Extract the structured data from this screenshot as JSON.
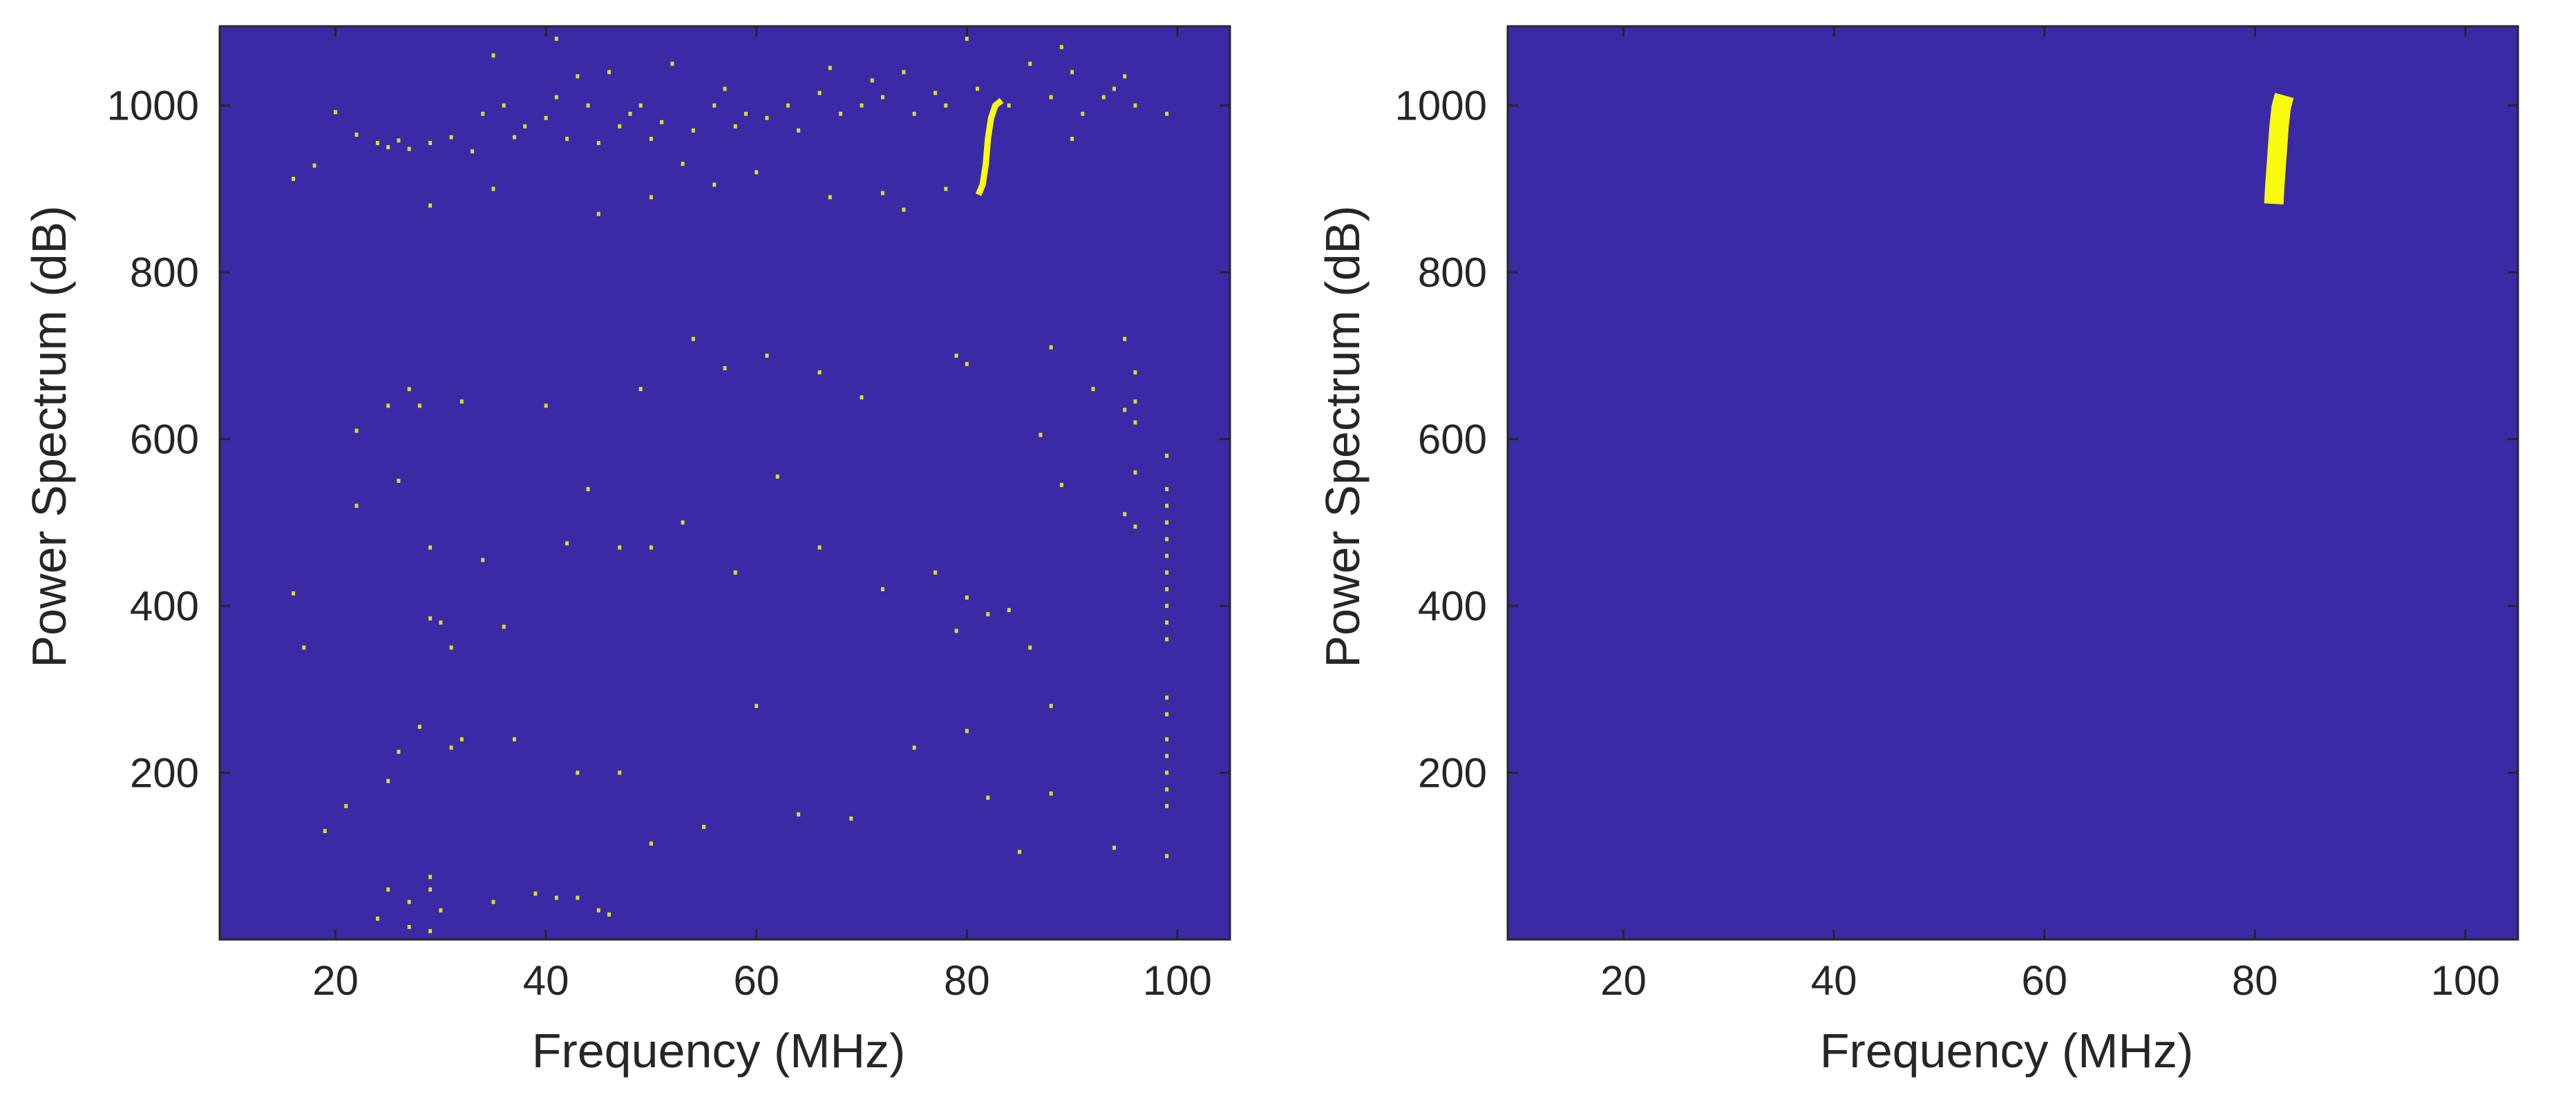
{
  "colors": {
    "background": "#3b2aa6",
    "signal": "#f9fb0e",
    "axis": "#262626"
  },
  "chart_data": [
    {
      "type": "heatmap",
      "title": "",
      "xlabel": "Frequency (MHz)",
      "ylabel": "Power Spectrum (dB)",
      "xlim": [
        9,
        105
      ],
      "ylim": [
        0,
        1095
      ],
      "xticks": [
        20,
        40,
        60,
        80,
        100
      ],
      "yticks": [
        200,
        400,
        600,
        800,
        1000
      ],
      "grid": false,
      "legend": "none",
      "colormap": [
        "#3b2aa6",
        "#f9fb0e"
      ],
      "description_of_values": "binary map; 1 = detected signal pixel",
      "signal_curve": {
        "points": [
          [
            81.1,
            893
          ],
          [
            81.5,
            905
          ],
          [
            81.8,
            930
          ],
          [
            82.0,
            960
          ],
          [
            82.3,
            985
          ],
          [
            82.7,
            1000
          ],
          [
            83.3,
            1006
          ]
        ]
      },
      "scatter_noise": {
        "points": [
          [
            16,
            912
          ],
          [
            18,
            928
          ],
          [
            20,
            992
          ],
          [
            22,
            965
          ],
          [
            24,
            955
          ],
          [
            25,
            950
          ],
          [
            26,
            958
          ],
          [
            27,
            948
          ],
          [
            29,
            955
          ],
          [
            31,
            962
          ],
          [
            33,
            945
          ],
          [
            34,
            990
          ],
          [
            35,
            1060
          ],
          [
            36,
            1000
          ],
          [
            37,
            962
          ],
          [
            38,
            975
          ],
          [
            40,
            985
          ],
          [
            41,
            1010
          ],
          [
            41,
            1080
          ],
          [
            42,
            960
          ],
          [
            43,
            1035
          ],
          [
            44,
            1000
          ],
          [
            45,
            955
          ],
          [
            46,
            1040
          ],
          [
            47,
            975
          ],
          [
            48,
            990
          ],
          [
            49,
            1000
          ],
          [
            50,
            960
          ],
          [
            51,
            980
          ],
          [
            52,
            1050
          ],
          [
            53,
            930
          ],
          [
            54,
            970
          ],
          [
            56,
            1000
          ],
          [
            57,
            1020
          ],
          [
            58,
            975
          ],
          [
            59,
            990
          ],
          [
            61,
            985
          ],
          [
            63,
            1000
          ],
          [
            64,
            970
          ],
          [
            66,
            1015
          ],
          [
            67,
            1045
          ],
          [
            68,
            990
          ],
          [
            70,
            1000
          ],
          [
            71,
            1030
          ],
          [
            72,
            1010
          ],
          [
            74,
            1040
          ],
          [
            75,
            990
          ],
          [
            77,
            1015
          ],
          [
            78,
            1000
          ],
          [
            80,
            1080
          ],
          [
            81,
            1020
          ],
          [
            84,
            1000
          ],
          [
            86,
            1050
          ],
          [
            88,
            1010
          ],
          [
            89,
            1070
          ],
          [
            90,
            960
          ],
          [
            90,
            1040
          ],
          [
            91,
            990
          ],
          [
            93,
            1010
          ],
          [
            94,
            1020
          ],
          [
            95,
            1035
          ],
          [
            96,
            1000
          ],
          [
            99,
            990
          ],
          [
            29,
            880
          ],
          [
            35,
            900
          ],
          [
            50,
            890
          ],
          [
            56,
            905
          ],
          [
            60,
            920
          ],
          [
            67,
            890
          ],
          [
            72,
            895
          ],
          [
            78,
            900
          ],
          [
            45,
            870
          ],
          [
            74,
            875
          ],
          [
            22,
            610
          ],
          [
            25,
            640
          ],
          [
            27,
            660
          ],
          [
            28,
            640
          ],
          [
            32,
            645
          ],
          [
            40,
            640
          ],
          [
            49,
            660
          ],
          [
            54,
            720
          ],
          [
            57,
            685
          ],
          [
            61,
            700
          ],
          [
            66,
            680
          ],
          [
            70,
            650
          ],
          [
            79,
            700
          ],
          [
            80,
            690
          ],
          [
            88,
            710
          ],
          [
            92,
            660
          ],
          [
            95,
            720
          ],
          [
            96,
            680
          ],
          [
            96,
            645
          ],
          [
            95,
            635
          ],
          [
            96,
            620
          ],
          [
            87,
            605
          ],
          [
            16,
            415
          ],
          [
            17,
            350
          ],
          [
            22,
            520
          ],
          [
            26,
            550
          ],
          [
            29,
            470
          ],
          [
            29,
            385
          ],
          [
            30,
            380
          ],
          [
            31,
            350
          ],
          [
            34,
            455
          ],
          [
            36,
            375
          ],
          [
            42,
            475
          ],
          [
            44,
            540
          ],
          [
            47,
            470
          ],
          [
            50,
            470
          ],
          [
            53,
            500
          ],
          [
            58,
            440
          ],
          [
            62,
            555
          ],
          [
            66,
            470
          ],
          [
            72,
            420
          ],
          [
            77,
            440
          ],
          [
            79,
            370
          ],
          [
            80,
            410
          ],
          [
            82,
            390
          ],
          [
            84,
            395
          ],
          [
            86,
            350
          ],
          [
            89,
            545
          ],
          [
            95,
            510
          ],
          [
            96,
            560
          ],
          [
            96,
            495
          ],
          [
            99,
            580
          ],
          [
            99,
            540
          ],
          [
            99,
            520
          ],
          [
            99,
            500
          ],
          [
            99,
            480
          ],
          [
            99,
            460
          ],
          [
            99,
            440
          ],
          [
            99,
            420
          ],
          [
            99,
            400
          ],
          [
            99,
            380
          ],
          [
            99,
            360
          ],
          [
            19,
            130
          ],
          [
            21,
            160
          ],
          [
            25,
            190
          ],
          [
            26,
            225
          ],
          [
            28,
            255
          ],
          [
            31,
            230
          ],
          [
            32,
            240
          ],
          [
            37,
            240
          ],
          [
            43,
            200
          ],
          [
            47,
            200
          ],
          [
            50,
            115
          ],
          [
            55,
            135
          ],
          [
            60,
            280
          ],
          [
            64,
            150
          ],
          [
            69,
            145
          ],
          [
            75,
            230
          ],
          [
            80,
            250
          ],
          [
            82,
            170
          ],
          [
            85,
            105
          ],
          [
            88,
            175
          ],
          [
            88,
            280
          ],
          [
            94,
            110
          ],
          [
            99,
            290
          ],
          [
            99,
            270
          ],
          [
            99,
            240
          ],
          [
            99,
            220
          ],
          [
            99,
            200
          ],
          [
            99,
            180
          ],
          [
            99,
            160
          ],
          [
            99,
            100
          ],
          [
            24,
            25
          ],
          [
            25,
            60
          ],
          [
            27,
            45
          ],
          [
            29,
            60
          ],
          [
            29,
            75
          ],
          [
            30,
            35
          ],
          [
            35,
            45
          ],
          [
            39,
            55
          ],
          [
            41,
            50
          ],
          [
            43,
            50
          ],
          [
            45,
            35
          ],
          [
            46,
            30
          ],
          [
            27,
            15
          ],
          [
            29,
            10
          ]
        ]
      }
    },
    {
      "type": "heatmap",
      "title": "",
      "xlabel": "Frequency (MHz)",
      "ylabel": "Power Spectrum (dB)",
      "xlim": [
        9,
        105
      ],
      "ylim": [
        0,
        1095
      ],
      "xticks": [
        20,
        40,
        60,
        80,
        100
      ],
      "yticks": [
        200,
        400,
        600,
        800,
        1000
      ],
      "grid": false,
      "legend": "none",
      "colormap": [
        "#3b2aa6",
        "#f9fb0e"
      ],
      "description_of_values": "binary map; 1 = detected signal pixel (filtered)",
      "signal_curve": {
        "points": [
          [
            81.8,
            882
          ],
          [
            81.9,
            905
          ],
          [
            82.1,
            940
          ],
          [
            82.3,
            975
          ],
          [
            82.5,
            998
          ],
          [
            82.8,
            1012
          ]
        ]
      },
      "scatter_noise": {
        "points": []
      }
    }
  ]
}
